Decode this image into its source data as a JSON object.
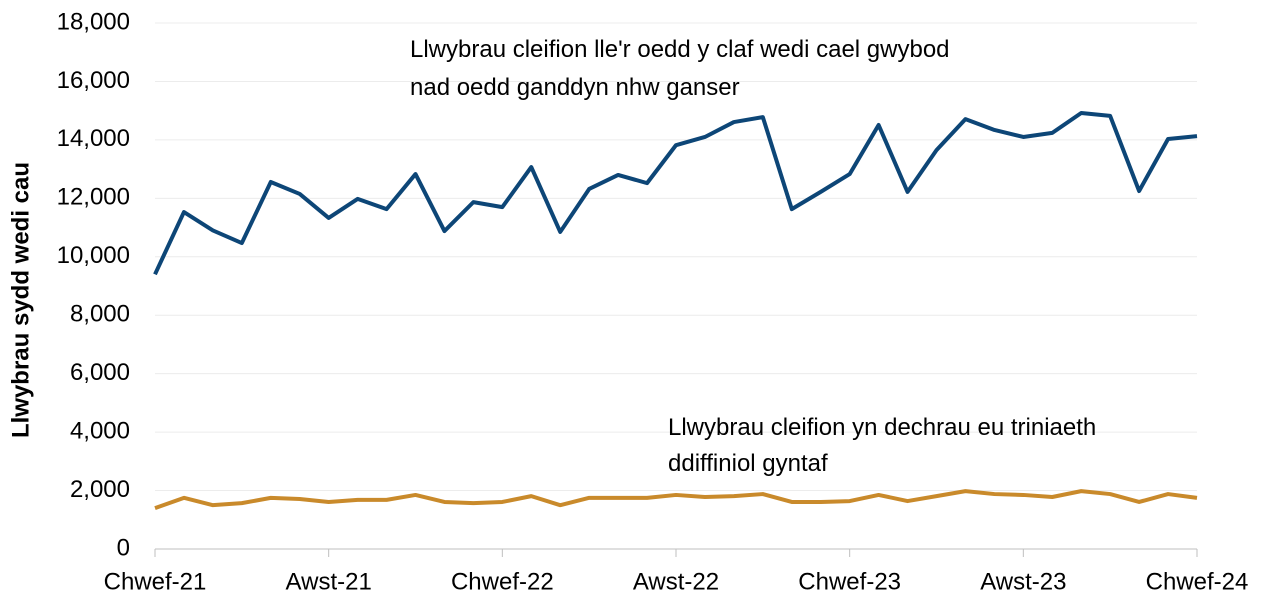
{
  "chart_data": {
    "type": "line",
    "ylabel": "Llwybrau sydd wedi cau",
    "categories": [
      "Chwef-21",
      null,
      null,
      null,
      null,
      null,
      "Awst-21",
      null,
      null,
      null,
      null,
      null,
      "Chwef-22",
      null,
      null,
      null,
      null,
      null,
      "Awst-22",
      null,
      null,
      null,
      null,
      null,
      "Chwef-23",
      null,
      null,
      null,
      null,
      null,
      "Awst-23",
      null,
      null,
      null,
      null,
      null,
      "Chwef-24"
    ],
    "series": [
      {
        "name": "Llwybrau cleifion lle'r oedd y claf wedi cael gwybod nad oedd ganddyn nhw ganser",
        "color": "#0d4677",
        "values": [
          9400,
          11530,
          10900,
          10470,
          12560,
          12150,
          11330,
          11980,
          11630,
          12830,
          10880,
          11870,
          11700,
          13070,
          10850,
          12320,
          12800,
          12520,
          13820,
          14100,
          14610,
          14780,
          11630,
          12220,
          12830,
          14510,
          12220,
          13650,
          14710,
          14340,
          14100,
          14240,
          14920,
          14820,
          12250,
          14030,
          14130
        ]
      },
      {
        "name": "Llwybrau cleifion yn dechrau eu triniaeth ddiffiniol gyntaf",
        "color": "#c98a2b",
        "values": [
          1400,
          1750,
          1500,
          1570,
          1750,
          1710,
          1610,
          1680,
          1680,
          1850,
          1610,
          1570,
          1610,
          1810,
          1500,
          1750,
          1750,
          1750,
          1850,
          1780,
          1810,
          1880,
          1610,
          1610,
          1640,
          1850,
          1640,
          1810,
          1980,
          1880,
          1850,
          1780,
          1980,
          1880,
          1610,
          1880,
          1750
        ]
      }
    ],
    "ylim": [
      0,
      18000
    ],
    "yticks": [
      0,
      {
        "value": 2000,
        "label": "2,000"
      },
      {
        "value": 4000,
        "label": "4,000"
      },
      {
        "value": 6000,
        "label": "6,000"
      },
      {
        "value": 8000,
        "label": "8,000"
      },
      {
        "value": 10000,
        "label": "10,000"
      },
      {
        "value": 12000,
        "label": "12,000"
      },
      {
        "value": 14000,
        "label": "14,000"
      },
      {
        "value": 16000,
        "label": "16,000"
      },
      {
        "value": 18000,
        "label": "18,000"
      }
    ],
    "grid": true
  }
}
